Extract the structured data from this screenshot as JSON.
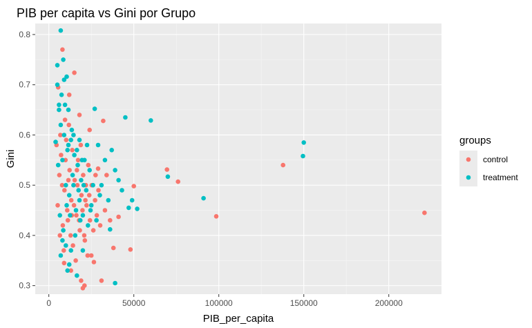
{
  "chart_data": {
    "type": "scatter",
    "title": "PIB per capita vs Gini por Grupo",
    "xlabel": "PIB_per_capita",
    "ylabel": "Gini",
    "xlim": [
      -8000,
      231000
    ],
    "ylim": [
      0.283,
      0.822
    ],
    "x_ticks": [
      0,
      50000,
      100000,
      150000,
      200000
    ],
    "x_tick_labels": [
      "0",
      "50000",
      "100000",
      "150000",
      "200000"
    ],
    "y_ticks": [
      0.3,
      0.4,
      0.5,
      0.6,
      0.7,
      0.8
    ],
    "y_tick_labels": [
      "0.3",
      "0.4",
      "0.5",
      "0.6",
      "0.7",
      "0.8"
    ],
    "grid": true,
    "legend": {
      "title": "groups",
      "position": "right"
    },
    "series": [
      {
        "name": "control",
        "color": "#F8766D",
        "points": [
          [
            221000,
            0.445
          ],
          [
            137800,
            0.54
          ],
          [
            98500,
            0.438
          ],
          [
            76000,
            0.507
          ],
          [
            69500,
            0.531
          ],
          [
            50000,
            0.498
          ],
          [
            48000,
            0.372
          ],
          [
            41000,
            0.437
          ],
          [
            38000,
            0.375
          ],
          [
            32000,
            0.628
          ],
          [
            31000,
            0.31
          ],
          [
            29000,
            0.533
          ],
          [
            26500,
            0.347
          ],
          [
            25000,
            0.36
          ],
          [
            21000,
            0.3
          ],
          [
            20000,
            0.295
          ],
          [
            19000,
            0.31
          ],
          [
            15000,
            0.724
          ],
          [
            13000,
            0.33
          ],
          [
            9000,
            0.345
          ],
          [
            8000,
            0.77
          ],
          [
            5500,
            0.695
          ],
          [
            33000,
            0.45
          ],
          [
            36000,
            0.43
          ],
          [
            34000,
            0.52
          ],
          [
            24000,
            0.61
          ],
          [
            18000,
            0.64
          ],
          [
            12000,
            0.68
          ],
          [
            5200,
            0.46
          ],
          [
            6200,
            0.52
          ],
          [
            7200,
            0.56
          ],
          [
            8200,
            0.42
          ],
          [
            9200,
            0.49
          ],
          [
            10200,
            0.59
          ],
          [
            11200,
            0.43
          ],
          [
            12200,
            0.53
          ],
          [
            13200,
            0.47
          ],
          [
            14200,
            0.38
          ],
          [
            15200,
            0.51
          ],
          [
            16200,
            0.44
          ],
          [
            17200,
            0.55
          ],
          [
            18200,
            0.41
          ],
          [
            19200,
            0.48
          ],
          [
            20200,
            0.52
          ],
          [
            21200,
            0.39
          ],
          [
            22200,
            0.46
          ],
          [
            23200,
            0.54
          ],
          [
            24200,
            0.43
          ],
          [
            25200,
            0.5
          ],
          [
            26200,
            0.41
          ],
          [
            27200,
            0.47
          ],
          [
            28200,
            0.44
          ],
          [
            29200,
            0.49
          ],
          [
            30200,
            0.42
          ],
          [
            6800,
            0.6
          ],
          [
            7800,
            0.5
          ],
          [
            8800,
            0.37
          ],
          [
            9800,
            0.55
          ],
          [
            10800,
            0.45
          ],
          [
            11800,
            0.62
          ],
          [
            12800,
            0.4
          ],
          [
            13800,
            0.57
          ],
          [
            14800,
            0.46
          ],
          [
            15800,
            0.35
          ],
          [
            16800,
            0.5
          ],
          [
            17800,
            0.43
          ],
          [
            18800,
            0.58
          ],
          [
            19800,
            0.45
          ],
          [
            20800,
            0.4
          ],
          [
            21800,
            0.5
          ],
          [
            22800,
            0.36
          ],
          [
            23800,
            0.48
          ],
          [
            9500,
            0.63
          ],
          [
            11500,
            0.51
          ],
          [
            13500,
            0.44
          ],
          [
            16500,
            0.53
          ],
          [
            21500,
            0.47
          ],
          [
            27500,
            0.52
          ],
          [
            4500,
            0.58
          ],
          [
            6500,
            0.4
          ]
        ]
      },
      {
        "name": "treatment",
        "color": "#00BFC4",
        "points": [
          [
            150000,
            0.585
          ],
          [
            149500,
            0.558
          ],
          [
            91000,
            0.474
          ],
          [
            70000,
            0.517
          ],
          [
            60000,
            0.629
          ],
          [
            52000,
            0.453
          ],
          [
            49000,
            0.47
          ],
          [
            45000,
            0.635
          ],
          [
            47000,
            0.455
          ],
          [
            39000,
            0.305
          ],
          [
            37000,
            0.57
          ],
          [
            36000,
            0.412
          ],
          [
            27000,
            0.652
          ],
          [
            7000,
            0.808
          ],
          [
            5000,
            0.739
          ],
          [
            8500,
            0.75
          ],
          [
            10500,
            0.716
          ],
          [
            4000,
            0.586
          ],
          [
            16500,
            0.32
          ],
          [
            11000,
            0.33
          ],
          [
            12000,
            0.342
          ],
          [
            39000,
            0.53
          ],
          [
            41000,
            0.51
          ],
          [
            43000,
            0.49
          ],
          [
            35000,
            0.47
          ],
          [
            33000,
            0.55
          ],
          [
            31000,
            0.5
          ],
          [
            29000,
            0.58
          ],
          [
            6000,
            0.65
          ],
          [
            7000,
            0.62
          ],
          [
            8000,
            0.55
          ],
          [
            9000,
            0.6
          ],
          [
            10000,
            0.5
          ],
          [
            11000,
            0.57
          ],
          [
            12000,
            0.48
          ],
          [
            13000,
            0.59
          ],
          [
            14000,
            0.52
          ],
          [
            15000,
            0.56
          ],
          [
            16000,
            0.45
          ],
          [
            17000,
            0.54
          ],
          [
            18000,
            0.47
          ],
          [
            19000,
            0.51
          ],
          [
            20000,
            0.44
          ],
          [
            21000,
            0.55
          ],
          [
            22000,
            0.49
          ],
          [
            23000,
            0.42
          ],
          [
            24000,
            0.53
          ],
          [
            25000,
            0.46
          ],
          [
            26000,
            0.5
          ],
          [
            28000,
            0.43
          ],
          [
            30000,
            0.48
          ],
          [
            5500,
            0.54
          ],
          [
            6500,
            0.44
          ],
          [
            7500,
            0.68
          ],
          [
            8500,
            0.41
          ],
          [
            9500,
            0.66
          ],
          [
            10500,
            0.46
          ],
          [
            11500,
            0.58
          ],
          [
            12500,
            0.44
          ],
          [
            13500,
            0.61
          ],
          [
            14500,
            0.5
          ],
          [
            15500,
            0.4
          ],
          [
            16500,
            0.57
          ],
          [
            17500,
            0.49
          ],
          [
            18500,
            0.43
          ],
          [
            19500,
            0.55
          ],
          [
            20500,
            0.5
          ],
          [
            22500,
            0.58
          ],
          [
            24500,
            0.45
          ],
          [
            5000,
            0.7
          ],
          [
            6000,
            0.66
          ],
          [
            9000,
            0.71
          ],
          [
            11500,
            0.65
          ],
          [
            14500,
            0.6
          ],
          [
            18000,
            0.59
          ],
          [
            7000,
            0.36
          ],
          [
            8000,
            0.39
          ],
          [
            10000,
            0.38
          ],
          [
            13000,
            0.37
          ],
          [
            20000,
            0.37
          ]
        ]
      }
    ]
  }
}
